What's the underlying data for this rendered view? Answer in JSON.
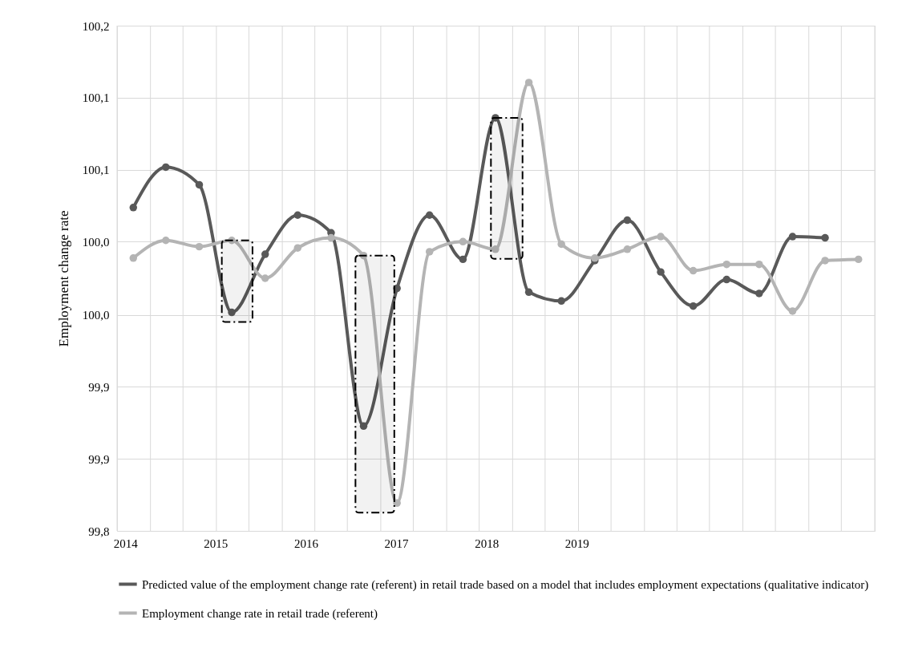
{
  "chart_data": {
    "type": "line",
    "ylabel": "Employment change rate",
    "x": [
      2014.09,
      2014.45,
      2014.82,
      2015.18,
      2015.55,
      2015.91,
      2016.28,
      2016.64,
      2017.01,
      2017.37,
      2017.74,
      2018.1,
      2018.47,
      2018.83,
      2019.2,
      2019.56,
      2019.93,
      2020.29,
      2020.66,
      2021.02,
      2021.39,
      2021.75,
      2022.12
    ],
    "series": [
      {
        "name": "Predicted value of the employment change rate (referent) in retail trade based on a model that includes employment expectations (qualitative indicator)",
        "color": "#595959",
        "values": [
          100.056,
          100.088,
          100.074,
          99.973,
          100.019,
          100.05,
          100.036,
          99.883,
          99.992,
          100.05,
          100.015,
          100.127,
          99.989,
          99.982,
          100.014,
          100.046,
          100.005,
          99.978,
          99.999,
          99.988,
          100.033,
          100.032,
          null
        ]
      },
      {
        "name": "Employment change rate in retail trade (referent)",
        "color": "#b4b4b4",
        "values": [
          100.016,
          100.03,
          100.025,
          100.03,
          100.0,
          100.024,
          100.032,
          100.018,
          99.822,
          100.021,
          100.029,
          100.023,
          100.155,
          100.027,
          100.016,
          100.023,
          100.033,
          100.006,
          100.011,
          100.011,
          99.974,
          100.014,
          100.015
        ]
      }
    ],
    "xlim": [
      2013.91,
      2022.3
    ],
    "xticks": [
      {
        "value": 2014,
        "label": "2014"
      },
      {
        "value": 2015,
        "label": "2015"
      },
      {
        "value": 2016,
        "label": "2016"
      },
      {
        "value": 2017,
        "label": "2017"
      },
      {
        "value": 2018,
        "label": "2018"
      },
      {
        "value": 2019,
        "label": "2019"
      },
      {
        "value": 2013.91,
        "label": null
      },
      {
        "value": 2014.28,
        "label": null
      },
      {
        "value": 2014.64,
        "label": null
      },
      {
        "value": 2015.01,
        "label": null
      },
      {
        "value": 2015.37,
        "label": null
      },
      {
        "value": 2015.74,
        "label": null
      },
      {
        "value": 2016.1,
        "label": null
      },
      {
        "value": 2016.46,
        "label": null
      },
      {
        "value": 2016.83,
        "label": null
      },
      {
        "value": 2017.19,
        "label": null
      },
      {
        "value": 2017.56,
        "label": null
      },
      {
        "value": 2017.92,
        "label": null
      },
      {
        "value": 2018.29,
        "label": null
      },
      {
        "value": 2018.65,
        "label": null
      },
      {
        "value": 2019.02,
        "label": null
      },
      {
        "value": 2019.38,
        "label": null
      },
      {
        "value": 2019.75,
        "label": null
      },
      {
        "value": 2020.11,
        "label": null
      },
      {
        "value": 2020.47,
        "label": null
      },
      {
        "value": 2020.84,
        "label": null
      },
      {
        "value": 2021.2,
        "label": null
      },
      {
        "value": 2021.57,
        "label": null
      },
      {
        "value": 2021.93,
        "label": null
      },
      {
        "value": 2022.3,
        "label": null
      }
    ],
    "ylim": [
      99.8,
      100.2
    ],
    "yticks": [
      {
        "value": 99.8,
        "label": "99,8"
      },
      {
        "value": 99.857,
        "label": "99,9"
      },
      {
        "value": 99.914,
        "label": "99,9"
      },
      {
        "value": 99.971,
        "label": "100,0"
      },
      {
        "value": 100.029,
        "label": "100,0"
      },
      {
        "value": 100.086,
        "label": "100,1"
      },
      {
        "value": 100.143,
        "label": "100,1"
      },
      {
        "value": 100.2,
        "label": "100,2"
      }
    ],
    "bands": [
      {
        "axis": "x",
        "from": 2015.07,
        "to": 2015.41
      },
      {
        "axis": "x",
        "from": 2016.55,
        "to": 2016.98
      },
      {
        "axis": "x",
        "from": 2018.05,
        "to": 2018.4
      }
    ],
    "grid": true,
    "legend": "bottom",
    "marker": "circle",
    "line_style": "solid"
  }
}
